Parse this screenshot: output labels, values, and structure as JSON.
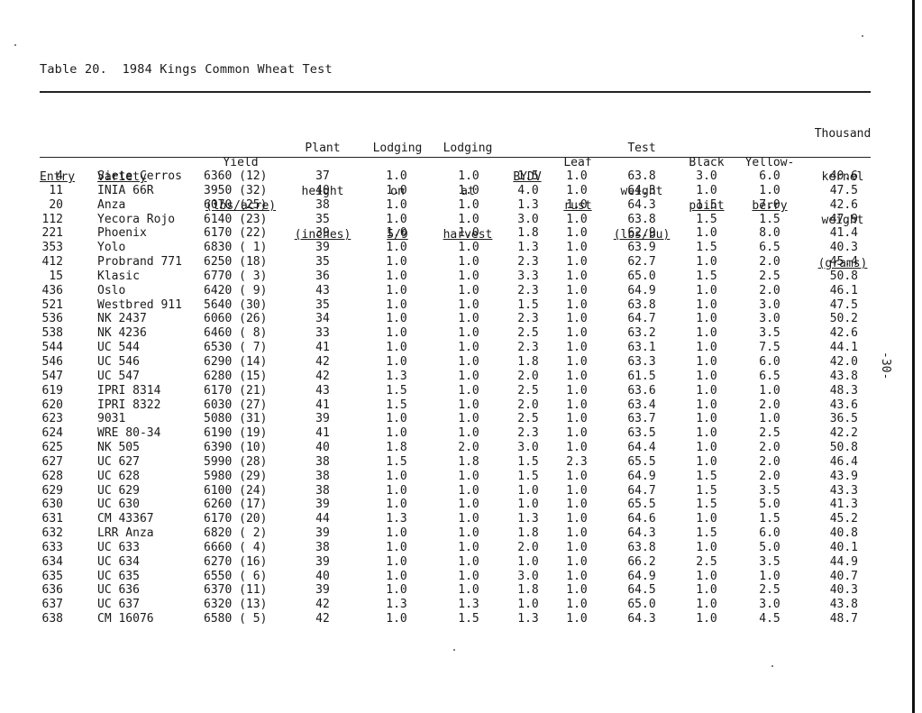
{
  "title": "Table 20.  1984 Kings Common Wheat Test",
  "page_number": "-30-",
  "headers": {
    "entry": [
      "Entry"
    ],
    "variety": [
      "Variety"
    ],
    "yield": [
      "Yield",
      "(lbs/acre)"
    ],
    "plant_height": [
      "Plant",
      "height",
      "(inches)"
    ],
    "lodging_59": [
      "Lodging",
      "on",
      "5/9"
    ],
    "lodging_harvest": [
      "Lodging",
      "at",
      "harvest"
    ],
    "bydv": [
      "BYDV"
    ],
    "leaf_rust": [
      "Leaf",
      "rust"
    ],
    "test_weight": [
      "Test",
      "weight",
      "(lbs/bu)"
    ],
    "black_point": [
      "Black",
      "point"
    ],
    "yellowberry": [
      "Yellow-",
      "berry"
    ],
    "thousand_kernel_weight": [
      "Thousand",
      "kernel",
      "weight",
      "(grams)"
    ]
  },
  "rows": [
    [
      "4",
      "Siete Cerros",
      "6360 (12)",
      "37",
      "1.0",
      "1.0",
      "1.5",
      "1.0",
      "63.8",
      "3.0",
      "6.0",
      "40.6"
    ],
    [
      "11",
      "INIA 66R",
      "3950 (32)",
      "40",
      "1.0",
      "1.0",
      "4.0",
      "1.0",
      "64.3",
      "1.0",
      "1.0",
      "47.5"
    ],
    [
      "20",
      "Anza",
      "6070 (25)",
      "38",
      "1.0",
      "1.0",
      "1.3",
      "1.0",
      "64.3",
      "1.5",
      "7.0",
      "42.6"
    ],
    [
      "112",
      "Yecora Rojo",
      "6140 (23)",
      "35",
      "1.0",
      "1.0",
      "3.0",
      "1.0",
      "63.8",
      "1.5",
      "1.5",
      "47.9"
    ],
    [
      "221",
      "Phoenix",
      "6170 (22)",
      "39",
      "1.0",
      "1.0",
      "1.8",
      "1.0",
      "62.9",
      "1.0",
      "8.0",
      "41.4"
    ],
    [
      "353",
      "Yolo",
      "6830 ( 1)",
      "39",
      "1.0",
      "1.0",
      "1.3",
      "1.0",
      "63.9",
      "1.5",
      "6.5",
      "40.3"
    ],
    [
      "412",
      "Probrand 771",
      "6250 (18)",
      "35",
      "1.0",
      "1.0",
      "2.3",
      "1.0",
      "62.7",
      "1.0",
      "2.0",
      "45.4"
    ],
    [
      "15",
      "Klasic",
      "6770 ( 3)",
      "36",
      "1.0",
      "1.0",
      "3.3",
      "1.0",
      "65.0",
      "1.5",
      "2.5",
      "50.8"
    ],
    [
      "436",
      "Oslo",
      "6420 ( 9)",
      "43",
      "1.0",
      "1.0",
      "2.3",
      "1.0",
      "64.9",
      "1.0",
      "2.0",
      "46.1"
    ],
    [
      "521",
      "Westbred 911",
      "5640 (30)",
      "35",
      "1.0",
      "1.0",
      "1.5",
      "1.0",
      "63.8",
      "1.0",
      "3.0",
      "47.5"
    ],
    [
      "536",
      "NK 2437",
      "6060 (26)",
      "34",
      "1.0",
      "1.0",
      "2.3",
      "1.0",
      "64.7",
      "1.0",
      "3.0",
      "50.2"
    ],
    [
      "538",
      "NK 4236",
      "6460 ( 8)",
      "33",
      "1.0",
      "1.0",
      "2.5",
      "1.0",
      "63.2",
      "1.0",
      "3.5",
      "42.6"
    ],
    [
      "544",
      "UC 544",
      "6530 ( 7)",
      "41",
      "1.0",
      "1.0",
      "2.3",
      "1.0",
      "63.1",
      "1.0",
      "7.5",
      "44.1"
    ],
    [
      "546",
      "UC 546",
      "6290 (14)",
      "42",
      "1.0",
      "1.0",
      "1.8",
      "1.0",
      "63.3",
      "1.0",
      "6.0",
      "42.0"
    ],
    [
      "547",
      "UC 547",
      "6280 (15)",
      "42",
      "1.3",
      "1.0",
      "2.0",
      "1.0",
      "61.5",
      "1.0",
      "6.5",
      "43.8"
    ],
    [
      "619",
      "IPRI 8314",
      "6170 (21)",
      "43",
      "1.5",
      "1.0",
      "2.5",
      "1.0",
      "63.6",
      "1.0",
      "1.0",
      "48.3"
    ],
    [
      "620",
      "IPRI 8322",
      "6030 (27)",
      "41",
      "1.5",
      "1.0",
      "2.0",
      "1.0",
      "63.4",
      "1.0",
      "2.0",
      "43.6"
    ],
    [
      "623",
      "9031",
      "5080 (31)",
      "39",
      "1.0",
      "1.0",
      "2.5",
      "1.0",
      "63.7",
      "1.0",
      "1.0",
      "36.5"
    ],
    [
      "624",
      "WRE 80-34",
      "6190 (19)",
      "41",
      "1.0",
      "1.0",
      "2.3",
      "1.0",
      "63.5",
      "1.0",
      "2.5",
      "42.2"
    ],
    [
      "625",
      "NK 505",
      "6390 (10)",
      "40",
      "1.8",
      "2.0",
      "3.0",
      "1.0",
      "64.4",
      "1.0",
      "2.0",
      "50.8"
    ],
    [
      "627",
      "UC 627",
      "5990 (28)",
      "38",
      "1.5",
      "1.8",
      "1.5",
      "2.3",
      "65.5",
      "1.0",
      "2.0",
      "46.4"
    ],
    [
      "628",
      "UC 628",
      "5980 (29)",
      "38",
      "1.0",
      "1.0",
      "1.5",
      "1.0",
      "64.9",
      "1.5",
      "2.0",
      "43.9"
    ],
    [
      "629",
      "UC 629",
      "6100 (24)",
      "38",
      "1.0",
      "1.0",
      "1.0",
      "1.0",
      "64.7",
      "1.5",
      "3.5",
      "43.3"
    ],
    [
      "630",
      "UC 630",
      "6260 (17)",
      "39",
      "1.0",
      "1.0",
      "1.0",
      "1.0",
      "65.5",
      "1.5",
      "5.0",
      "41.3"
    ],
    [
      "631",
      "CM 43367",
      "6170 (20)",
      "44",
      "1.3",
      "1.0",
      "1.3",
      "1.0",
      "64.6",
      "1.0",
      "1.5",
      "45.2"
    ],
    [
      "632",
      "LRR Anza",
      "6820 ( 2)",
      "39",
      "1.0",
      "1.0",
      "1.8",
      "1.0",
      "64.3",
      "1.5",
      "6.0",
      "40.8"
    ],
    [
      "633",
      "UC 633",
      "6660 ( 4)",
      "38",
      "1.0",
      "1.0",
      "2.0",
      "1.0",
      "63.8",
      "1.0",
      "5.0",
      "40.1"
    ],
    [
      "634",
      "UC 634",
      "6270 (16)",
      "39",
      "1.0",
      "1.0",
      "1.0",
      "1.0",
      "66.2",
      "2.5",
      "3.5",
      "44.9"
    ],
    [
      "635",
      "UC 635",
      "6550 ( 6)",
      "40",
      "1.0",
      "1.0",
      "3.0",
      "1.0",
      "64.9",
      "1.0",
      "1.0",
      "40.7"
    ],
    [
      "636",
      "UC 636",
      "6370 (11)",
      "39",
      "1.0",
      "1.0",
      "1.8",
      "1.0",
      "64.5",
      "1.0",
      "2.5",
      "40.3"
    ],
    [
      "637",
      "UC 637",
      "6320 (13)",
      "42",
      "1.3",
      "1.3",
      "1.0",
      "1.0",
      "65.0",
      "1.0",
      "3.0",
      "43.8"
    ],
    [
      "638",
      "CM 16076",
      "6580 ( 5)",
      "42",
      "1.0",
      "1.5",
      "1.3",
      "1.0",
      "64.3",
      "1.0",
      "4.5",
      "48.7"
    ]
  ]
}
